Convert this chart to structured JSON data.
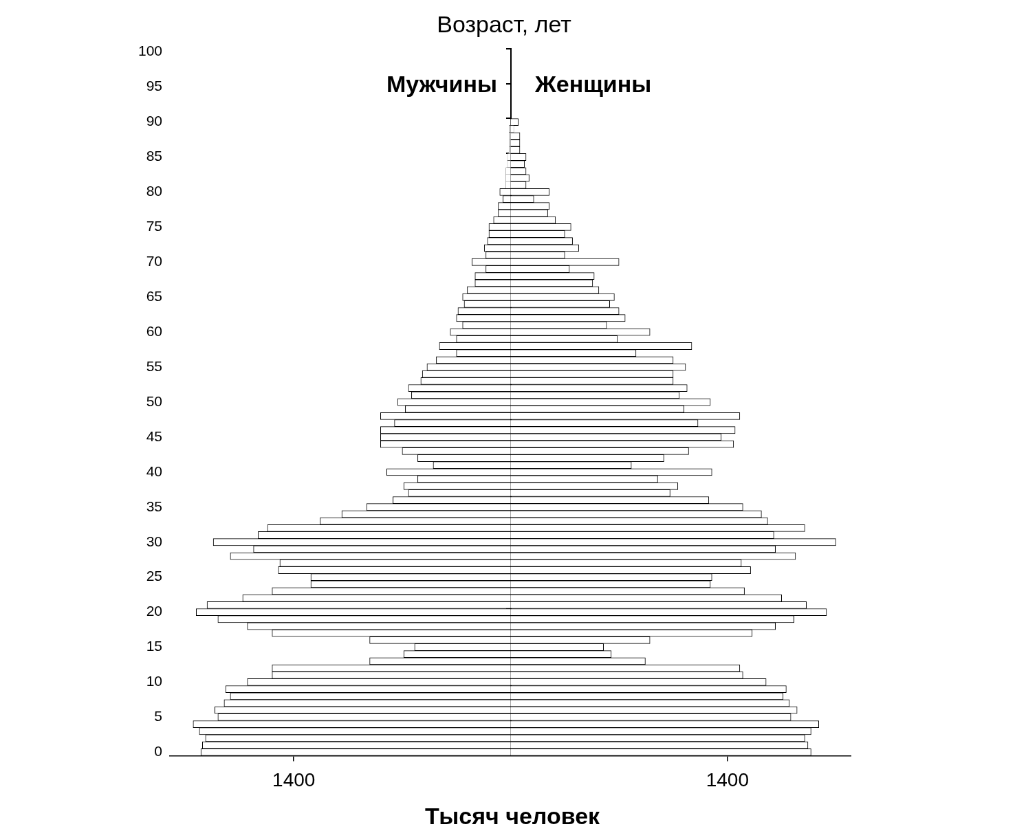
{
  "chart_data": {
    "type": "bar",
    "orientation": "horizontal",
    "stacked": true,
    "ylabel": "Возраст, лет",
    "xlabel": "Тысяч человек",
    "xlim": [
      -2200,
      2200
    ],
    "xticks": [
      {
        "value": -1400,
        "label": "1400"
      },
      {
        "value": 1400,
        "label": "1400"
      }
    ],
    "categories": [
      "100",
      null,
      null,
      null,
      null,
      "95",
      null,
      null,
      null,
      null,
      "90",
      null,
      null,
      null,
      null,
      "85",
      null,
      null,
      null,
      null,
      "80",
      null,
      null,
      null,
      null,
      "75",
      null,
      null,
      null,
      null,
      "70",
      null,
      null,
      null,
      null,
      "65",
      null,
      null,
      null,
      null,
      "60",
      null,
      null,
      null,
      null,
      "55",
      null,
      null,
      null,
      null,
      "50",
      null,
      null,
      null,
      null,
      "45",
      null,
      null,
      null,
      null,
      "40",
      null,
      null,
      null,
      null,
      "35",
      null,
      null,
      null,
      null,
      "30",
      null,
      null,
      null,
      null,
      "25",
      null,
      null,
      null,
      null,
      "20",
      null,
      null,
      null,
      null,
      "15",
      null,
      null,
      null,
      null,
      "10",
      null,
      null,
      null,
      null,
      "5",
      null,
      null,
      null,
      null,
      "0"
    ],
    "series": [
      {
        "name": "Мужчины",
        "color": "#ffffff",
        "values": [
          null,
          null,
          null,
          null,
          null,
          null,
          null,
          null,
          null,
          null,
          null,
          -10,
          -10,
          -10,
          -10,
          -20,
          -20,
          -30,
          -30,
          -30,
          -70,
          -50,
          -80,
          -80,
          -110,
          -140,
          -140,
          -150,
          -170,
          -160,
          -250,
          -160,
          -230,
          -230,
          -280,
          -310,
          -300,
          -340,
          -350,
          -310,
          -390,
          -350,
          -460,
          -350,
          -480,
          -540,
          -570,
          -580,
          -660,
          -640,
          -730,
          -680,
          -840,
          -750,
          -840,
          -840,
          -840,
          -700,
          -600,
          -500,
          -800,
          -600,
          -690,
          -660,
          -760,
          -930,
          -1090,
          -1230,
          -1570,
          -1630,
          -1920,
          -1660,
          -1810,
          -1490,
          -1500,
          -1290,
          -1290,
          -1540,
          -1730,
          -1960,
          -2030,
          -1890,
          -1700,
          -1540,
          -910,
          -620,
          -690,
          -910,
          -1540,
          -1540,
          -1700,
          -1840,
          -1810,
          -1850,
          -1910,
          -1890,
          -2050,
          -2010,
          -1970,
          -1990,
          -2000
        ]
      },
      {
        "name": "Женщины",
        "color": "#ffffff",
        "values": [
          null,
          null,
          null,
          null,
          null,
          null,
          null,
          null,
          null,
          null,
          50,
          20,
          60,
          60,
          60,
          100,
          90,
          100,
          120,
          100,
          250,
          150,
          250,
          240,
          290,
          390,
          350,
          400,
          440,
          350,
          700,
          380,
          540,
          530,
          570,
          670,
          640,
          700,
          740,
          620,
          900,
          690,
          1170,
          810,
          1050,
          1130,
          1050,
          1050,
          1140,
          1090,
          1290,
          1120,
          1480,
          1210,
          1450,
          1360,
          1440,
          1150,
          990,
          780,
          1300,
          950,
          1080,
          1030,
          1280,
          1500,
          1620,
          1660,
          1900,
          1700,
          2100,
          1710,
          1840,
          1490,
          1550,
          1300,
          1290,
          1510,
          1750,
          1910,
          2040,
          1830,
          1710,
          1560,
          900,
          600,
          650,
          870,
          1480,
          1500,
          1650,
          1780,
          1760,
          1800,
          1850,
          1810,
          1990,
          1940,
          1900,
          1920,
          1940
        ]
      }
    ]
  }
}
